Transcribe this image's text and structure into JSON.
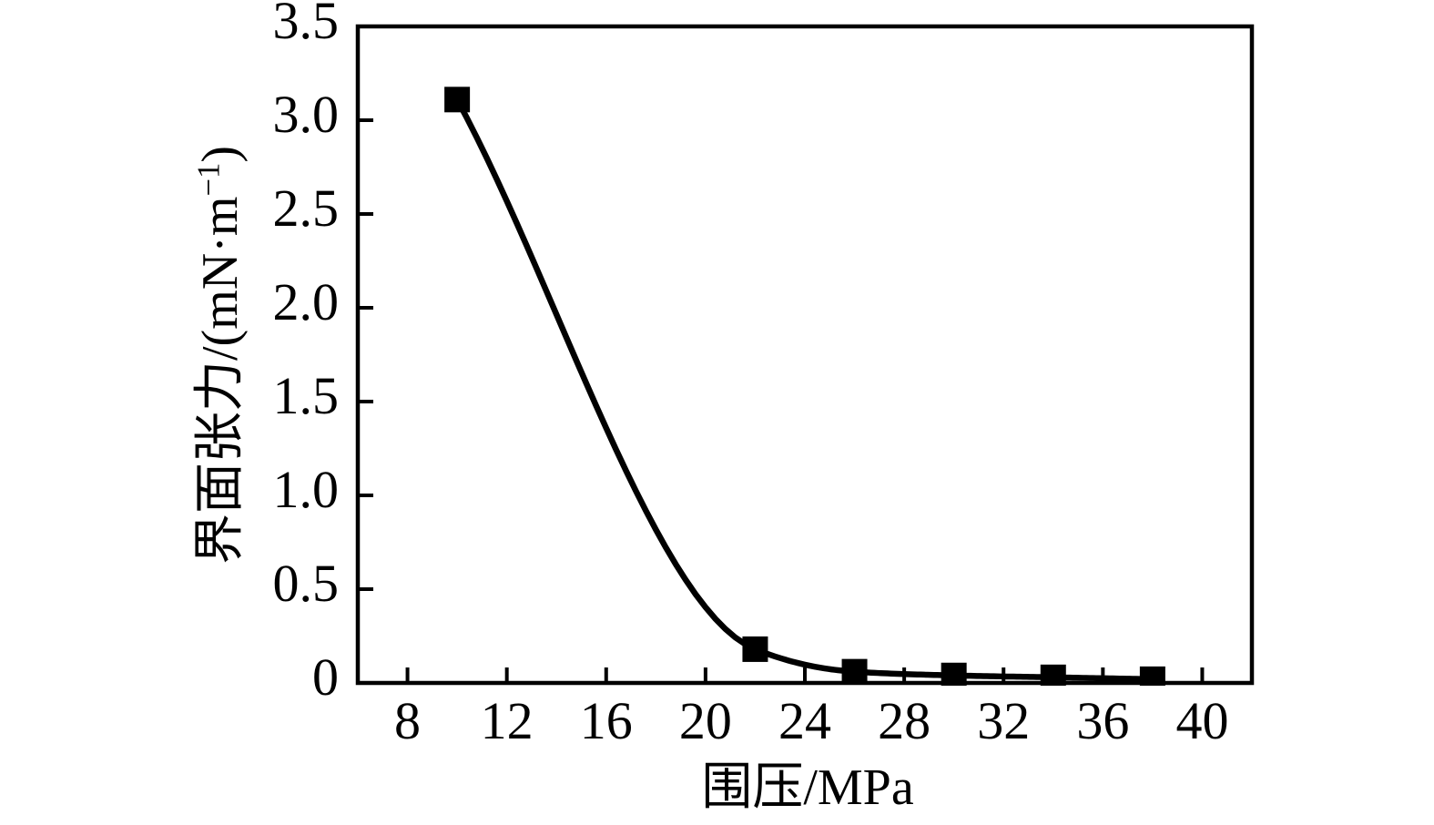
{
  "figure": {
    "background_color": "#ffffff",
    "ink_color": "#000000"
  },
  "chart_data": {
    "type": "line",
    "title": "",
    "xlabel": "围压/MPa",
    "ylabel": {
      "prefix": "界面张力/(mN·m",
      "sup": "−1",
      "suffix": ")"
    },
    "series": [
      {
        "name": "界面张力",
        "marker": "filled-square",
        "color": "#000000",
        "x": [
          10,
          22,
          26,
          30,
          34,
          38
        ],
        "y": [
          3.11,
          0.18,
          0.06,
          0.04,
          0.03,
          0.02
        ]
      }
    ],
    "xlim": [
      6,
      42
    ],
    "ylim": [
      0,
      3.5
    ],
    "xticks": [
      8,
      12,
      16,
      20,
      24,
      28,
      32,
      36,
      40
    ],
    "xtick_labels": [
      "8",
      "12",
      "16",
      "20",
      "24",
      "28",
      "32",
      "36",
      "40"
    ],
    "yticks": [
      0,
      0.5,
      1.0,
      1.5,
      2.0,
      2.5,
      3.0,
      3.5
    ],
    "ytick_labels": [
      "0",
      "0.5",
      "1.0",
      "1.5",
      "2.0",
      "2.5",
      "3.0",
      "3.5"
    ],
    "grid": false,
    "legend": "none",
    "curve": "smooth-monotone-through-points"
  }
}
